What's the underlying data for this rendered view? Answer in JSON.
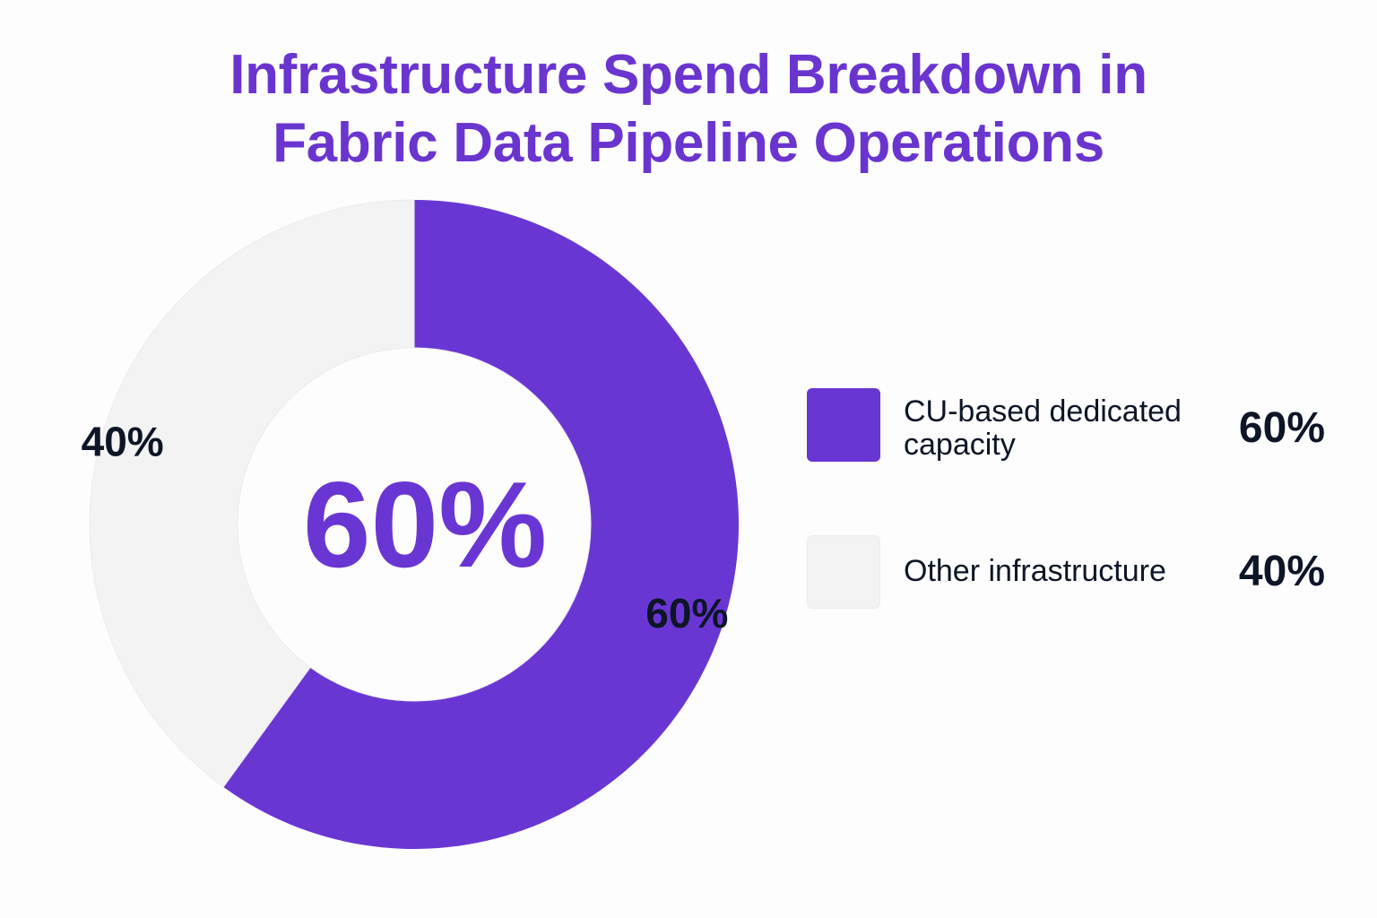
{
  "title_lines": [
    "Infrastructure Spend Breakdown in",
    "Fabric Data Pipeline Operations"
  ],
  "center_label": "60%",
  "colors": {
    "primary": "#6a36d3",
    "secondary": "#f3f3f4",
    "title": "#6a34cf",
    "text": "#0d1526"
  },
  "legend": [
    {
      "label": "CU-based dedicated capacity",
      "value_label": "60%"
    },
    {
      "label": "Other infrastructure",
      "value_label": "40%"
    }
  ],
  "chart_data": {
    "type": "pie",
    "title": "Infrastructure Spend Breakdown in Fabric Data Pipeline Operations",
    "categories": [
      "CU-based dedicated capacity",
      "Other infrastructure"
    ],
    "values": [
      60,
      40
    ],
    "value_labels": [
      "60%",
      "40%"
    ],
    "colors": [
      "#6a36d3",
      "#f3f3f4"
    ],
    "donut": true,
    "center_label": "60%",
    "legend_position": "right"
  }
}
